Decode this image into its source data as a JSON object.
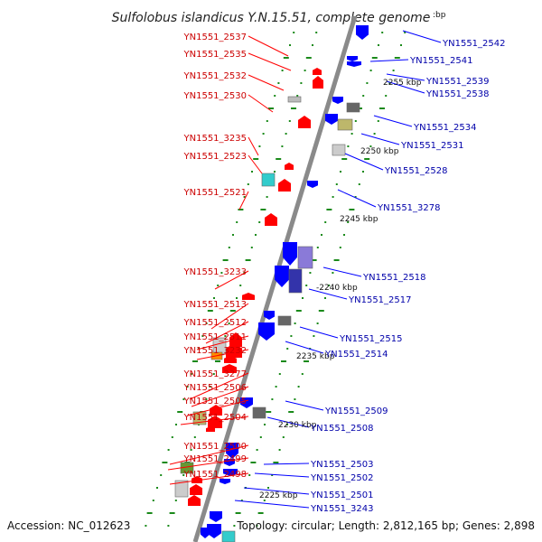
{
  "title": "Sulfolobus islandicus Y.N.15.51, complete genome",
  "top_kbp_fragment": ":bp",
  "footer": {
    "accession": "Accession: NC_012623",
    "topology": "Topology: circular; Length: 2,812,165 bp; Genes: 2,898"
  },
  "kbp_labels": [
    "2255 kbp",
    "2250 kbp",
    "2245 kbp",
    "-2240 kbp",
    "2235 kbp",
    "2230 kbp",
    "2225 kbp"
  ],
  "left_genes": [
    "YN1551_2537",
    "YN1551_2535",
    "YN1551_2532",
    "YN1551_2530",
    "YN1551_3235",
    "YN1551_2523",
    "YN1551_2521",
    "YN1551_3233",
    "YN1551_2513",
    "YN1551_2512",
    "YN1551_2511",
    "YN1551_3232",
    "YN1551_3277",
    "YN1551_2506",
    "YN1551_2505",
    "YN1551_2504",
    "YN1551_2500",
    "YN1551_2499",
    "YN1551_2498"
  ],
  "right_genes": [
    "YN1551_2542",
    "YN1551_2541",
    "YN1551_2539",
    "YN1551_2538",
    "YN1551_2534",
    "YN1551_2531",
    "YN1551_2528",
    "YN1551_3278",
    "YN1551_2518",
    "YN1551_2517",
    "YN1551_2515",
    "YN1551_2514",
    "YN1551_2509",
    "YN1551_2508",
    "YN1551_2503",
    "YN1551_2502",
    "YN1551_2501",
    "YN1551_3243"
  ],
  "colors": {
    "left_strand": "#ff0000",
    "right_strand": "#0000ff",
    "axis": "#8a8a8a",
    "tick": "#1a8a1a",
    "teal": "#33cccc",
    "olive": "#669933",
    "khaki": "#bdb76b",
    "orange": "#ff8c00",
    "gray": "#bbbbbb",
    "purple": "#8a7ad8"
  }
}
